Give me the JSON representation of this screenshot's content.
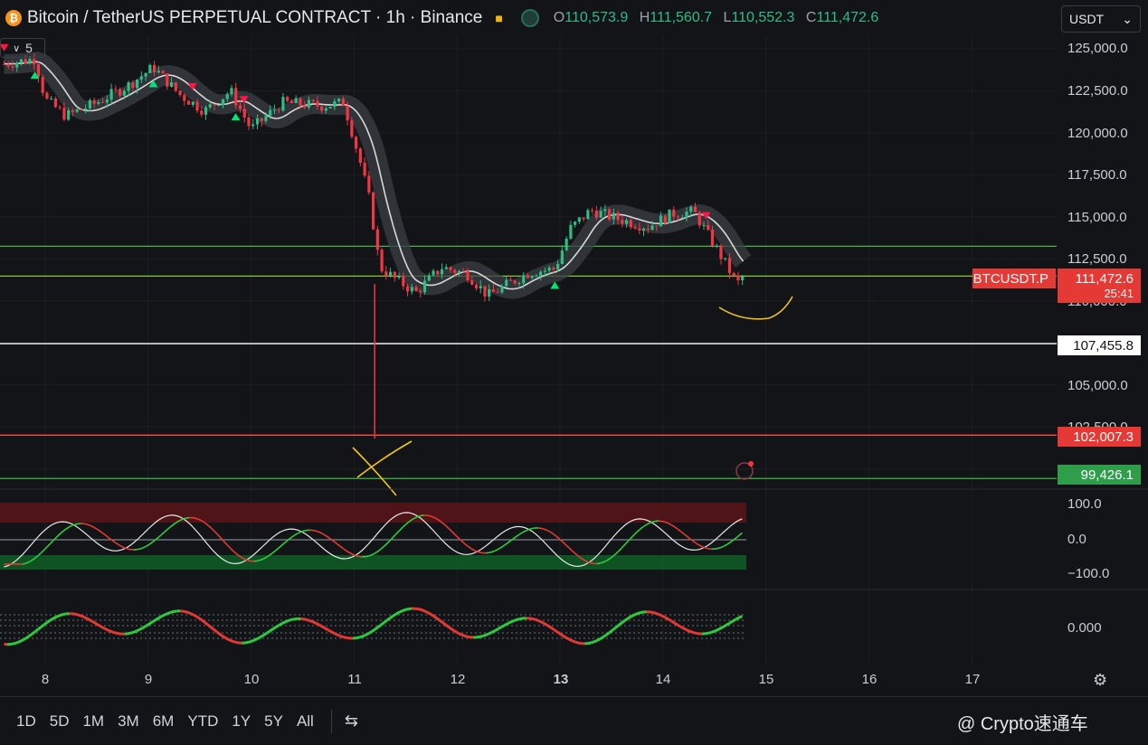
{
  "header": {
    "coin_glyph": "₿",
    "title": "Bitcoin / TetherUS PERPETUAL CONTRACT · 1h · Binance",
    "o_label": "O",
    "o_value": "110,573.9",
    "h_label": "H",
    "h_value": "111,560.7",
    "l_label": "L",
    "l_value": "110,552.3",
    "c_label": "C",
    "c_value": "111,472.6"
  },
  "currency_select": {
    "value": "USDT"
  },
  "indicator_badge": {
    "count": "5"
  },
  "price_axis": {
    "ticks": [
      "125,000.0",
      "122,500.0",
      "120,000.0",
      "117,500.0",
      "115,000.0",
      "112,500.0",
      "110,000.0",
      "107,455.8",
      "105,000.0",
      "102,500.0",
      "102,007.3",
      "99,426.1"
    ]
  },
  "price_tags": {
    "symbol": "BTCUSDT.P",
    "last_price": "111,472.6",
    "countdown": "25:41",
    "level_white": "107,455.8",
    "level_red": "102,007.3",
    "level_green": "99,426.1"
  },
  "osc_axis": {
    "ticks": [
      "100.0",
      "0.0",
      "−100.0"
    ]
  },
  "osc2_axis": {
    "ticks": [
      "0.000"
    ]
  },
  "time_axis": {
    "ticks": [
      "8",
      "9",
      "10",
      "11",
      "12",
      "13",
      "14",
      "15",
      "16",
      "17"
    ]
  },
  "timeframes": [
    "1D",
    "5D",
    "1M",
    "3M",
    "6M",
    "YTD",
    "1Y",
    "5Y",
    "All"
  ],
  "watermark": "@ Crypto速通车",
  "chart_data": {
    "type": "candlestick",
    "title": "Bitcoin / TetherUS PERPETUAL CONTRACT · 1h · Binance",
    "interval": "1h",
    "ylim": [
      98500,
      126500
    ],
    "y_ticks": [
      125000,
      122500,
      120000,
      117500,
      115000,
      112500,
      110000,
      105000,
      102500
    ],
    "x_ticks": [
      "8",
      "9",
      "10",
      "11",
      "12",
      "13",
      "14",
      "15",
      "16",
      "17"
    ],
    "horizontal_levels": [
      {
        "value": 113250,
        "color": "#4caf50"
      },
      {
        "value": 111472.6,
        "color": "#8bc34a"
      },
      {
        "value": 107455.8,
        "color": "#ffffff"
      },
      {
        "value": 102007.3,
        "color": "#ef5350"
      },
      {
        "value": 99426.1,
        "color": "#4caf50"
      }
    ],
    "close_path": [
      {
        "t": 7.6,
        "v": 124100
      },
      {
        "t": 7.9,
        "v": 124400
      },
      {
        "t": 8.0,
        "v": 122000
      },
      {
        "t": 8.2,
        "v": 121000
      },
      {
        "t": 8.5,
        "v": 121800
      },
      {
        "t": 8.8,
        "v": 122800
      },
      {
        "t": 9.05,
        "v": 123900
      },
      {
        "t": 9.3,
        "v": 122300
      },
      {
        "t": 9.55,
        "v": 121300
      },
      {
        "t": 9.8,
        "v": 122500
      },
      {
        "t": 10.0,
        "v": 120200
      },
      {
        "t": 10.3,
        "v": 121800
      },
      {
        "t": 10.7,
        "v": 121600
      },
      {
        "t": 10.9,
        "v": 121800
      },
      {
        "t": 11.05,
        "v": 118500
      },
      {
        "t": 11.15,
        "v": 116000
      },
      {
        "t": 11.25,
        "v": 112000
      },
      {
        "t": 11.4,
        "v": 111300
      },
      {
        "t": 11.6,
        "v": 110500
      },
      {
        "t": 11.85,
        "v": 112000
      },
      {
        "t": 12.1,
        "v": 111600
      },
      {
        "t": 12.3,
        "v": 110300
      },
      {
        "t": 12.5,
        "v": 111000
      },
      {
        "t": 12.7,
        "v": 111700
      },
      {
        "t": 12.95,
        "v": 111900
      },
      {
        "t": 13.1,
        "v": 114300
      },
      {
        "t": 13.3,
        "v": 115400
      },
      {
        "t": 13.55,
        "v": 114900
      },
      {
        "t": 13.85,
        "v": 114400
      },
      {
        "t": 14.1,
        "v": 115200
      },
      {
        "t": 14.3,
        "v": 115300
      },
      {
        "t": 14.45,
        "v": 113800
      },
      {
        "t": 14.6,
        "v": 112300
      },
      {
        "t": 14.72,
        "v": 111000
      },
      {
        "t": 14.78,
        "v": 111472.6
      }
    ],
    "wick_low": {
      "t": 11.2,
      "v": 101800
    },
    "signals": [
      {
        "t": 7.6,
        "dir": "down"
      },
      {
        "t": 7.9,
        "dir": "up"
      },
      {
        "t": 9.05,
        "dir": "up"
      },
      {
        "t": 9.43,
        "dir": "down"
      },
      {
        "t": 9.85,
        "dir": "up"
      },
      {
        "t": 9.93,
        "dir": "down"
      },
      {
        "t": 12.95,
        "dir": "up"
      },
      {
        "t": 14.42,
        "dir": "down"
      }
    ]
  }
}
